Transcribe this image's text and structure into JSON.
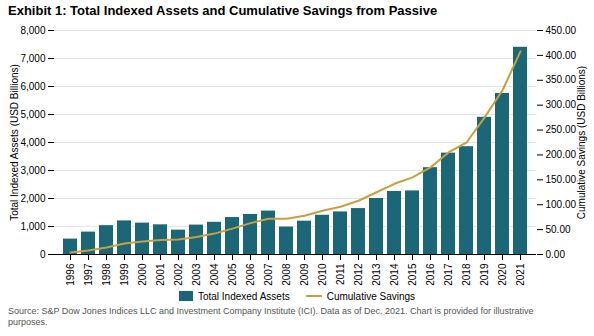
{
  "chart_data": {
    "type": "bar",
    "title": "Exhibit 1: Total Indexed Assets and Cumulative Savings from Passive",
    "categories": [
      "1996",
      "1997",
      "1998",
      "1999",
      "2000",
      "2001",
      "2002",
      "2003",
      "2004",
      "2005",
      "2006",
      "2007",
      "2008",
      "2009",
      "2010",
      "2011",
      "2012",
      "2013",
      "2014",
      "2015",
      "2016",
      "2017",
      "2018",
      "2019",
      "2020",
      "2021"
    ],
    "series": [
      {
        "name": "Total Indexed Assets",
        "type": "bar",
        "color": "#1b6777",
        "values": [
          550,
          800,
          1030,
          1200,
          1120,
          1060,
          870,
          1050,
          1150,
          1320,
          1430,
          1550,
          980,
          1190,
          1400,
          1520,
          1640,
          2000,
          2250,
          2270,
          3100,
          3620,
          3850,
          4900,
          5750,
          7400
        ]
      },
      {
        "name": "Cumulative Savings",
        "type": "line",
        "color": "#c8a040",
        "axis": "y2",
        "values": [
          4,
          8,
          14,
          22,
          26,
          29,
          30,
          35,
          42,
          52,
          63,
          72,
          72,
          78,
          88,
          96,
          108,
          125,
          142,
          155,
          175,
          205,
          225,
          275,
          330,
          408
        ]
      }
    ],
    "ylabel": "Total Indexed Assets (USD Billions)",
    "y2label": "Cumulative Savings (USD Billions)",
    "ylim": [
      0,
      8000
    ],
    "yticks": [
      0,
      {
        "value": 1000,
        "label": "1,000"
      },
      {
        "value": 2000,
        "label": "2,000"
      },
      {
        "value": 3000,
        "label": "3,000"
      },
      {
        "value": 4000,
        "label": "4,000"
      },
      {
        "value": 5000,
        "label": "5,000"
      },
      {
        "value": 6000,
        "label": "6,000"
      },
      {
        "value": 7000,
        "label": "7,000"
      },
      {
        "value": 8000,
        "label": "8,000"
      }
    ],
    "y2lim": [
      0,
      450
    ],
    "y2ticks": [
      {
        "value": 0,
        "label": "0.00"
      },
      {
        "value": 50,
        "label": "50.00"
      },
      {
        "value": 100,
        "label": "100.00"
      },
      {
        "value": 150,
        "label": "150.00"
      },
      {
        "value": 200,
        "label": "200.00"
      },
      {
        "value": 250,
        "label": "250.00"
      },
      {
        "value": 300,
        "label": "300.00"
      },
      {
        "value": 350,
        "label": "350.00"
      },
      {
        "value": 400,
        "label": "400.00"
      },
      {
        "value": 450,
        "label": "450.00"
      }
    ],
    "grid": true,
    "legend": "bottom",
    "caption": "Source: S&P Dow Jones Indices LLC and Investment Company Institute (ICI). Data as of Dec. 2021. Chart is provided for illustrative\npurposes."
  }
}
